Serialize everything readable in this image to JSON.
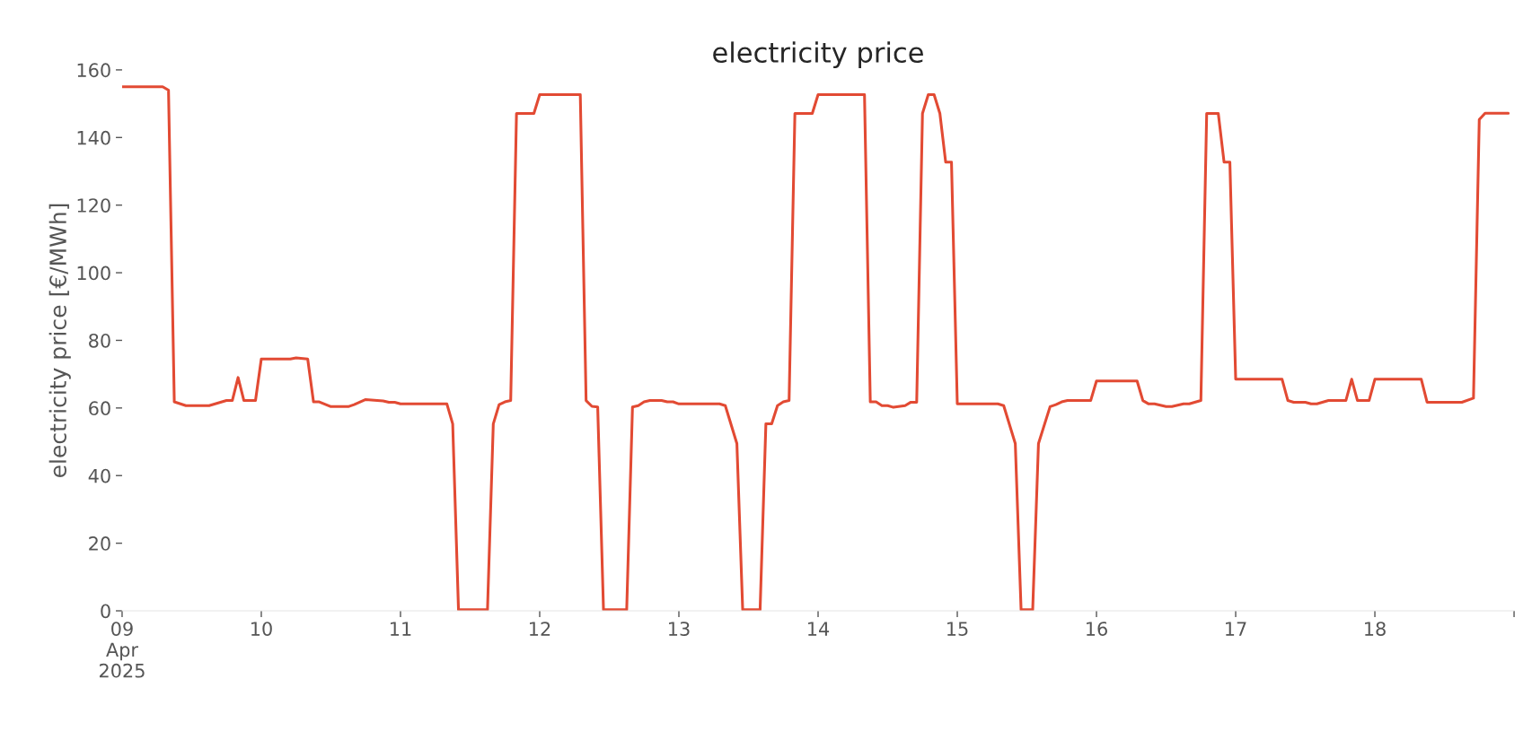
{
  "chart_data": {
    "type": "line",
    "title": "electricity price",
    "ylabel": "electricity price [€/MWh]",
    "x": [
      "2025-04-09T00:00",
      "2025-04-09T07:00",
      "2025-04-09T08:00",
      "2025-04-09T09:00",
      "2025-04-09T11:00",
      "2025-04-09T15:00",
      "2025-04-09T18:00",
      "2025-04-09T19:00",
      "2025-04-09T20:00",
      "2025-04-09T21:00",
      "2025-04-09T23:00",
      "2025-04-10T00:00",
      "2025-04-10T05:00",
      "2025-04-10T06:00",
      "2025-04-10T08:00",
      "2025-04-10T09:00",
      "2025-04-10T10:00",
      "2025-04-10T12:00",
      "2025-04-10T15:00",
      "2025-04-10T16:00",
      "2025-04-10T18:00",
      "2025-04-10T21:00",
      "2025-04-10T22:00",
      "2025-04-10T23:00",
      "2025-04-11T00:00",
      "2025-04-11T08:00",
      "2025-04-11T09:00",
      "2025-04-11T10:00",
      "2025-04-11T15:00",
      "2025-04-11T16:00",
      "2025-04-11T17:00",
      "2025-04-11T18:00",
      "2025-04-11T19:00",
      "2025-04-11T20:00",
      "2025-04-11T23:00",
      "2025-04-12T00:00",
      "2025-04-12T07:00",
      "2025-04-12T08:00",
      "2025-04-12T09:00",
      "2025-04-12T10:00",
      "2025-04-12T11:00",
      "2025-04-12T15:00",
      "2025-04-12T16:00",
      "2025-04-12T17:00",
      "2025-04-12T18:00",
      "2025-04-12T19:00",
      "2025-04-12T21:00",
      "2025-04-12T22:00",
      "2025-04-12T23:00",
      "2025-04-13T00:00",
      "2025-04-13T07:00",
      "2025-04-13T08:00",
      "2025-04-13T10:00",
      "2025-04-13T11:00",
      "2025-04-13T14:00",
      "2025-04-13T15:00",
      "2025-04-13T16:00",
      "2025-04-13T17:00",
      "2025-04-13T18:00",
      "2025-04-13T19:00",
      "2025-04-13T20:00",
      "2025-04-13T23:00",
      "2025-04-14T00:00",
      "2025-04-14T08:00",
      "2025-04-14T09:00",
      "2025-04-14T10:00",
      "2025-04-14T11:00",
      "2025-04-14T12:00",
      "2025-04-14T13:00",
      "2025-04-14T15:00",
      "2025-04-14T16:00",
      "2025-04-14T17:00",
      "2025-04-14T18:00",
      "2025-04-14T19:00",
      "2025-04-14T20:00",
      "2025-04-14T21:00",
      "2025-04-14T22:00",
      "2025-04-14T23:00",
      "2025-04-15T00:00",
      "2025-04-15T07:00",
      "2025-04-15T08:00",
      "2025-04-15T10:00",
      "2025-04-15T11:00",
      "2025-04-15T13:00",
      "2025-04-15T14:00",
      "2025-04-15T16:00",
      "2025-04-15T17:00",
      "2025-04-15T18:00",
      "2025-04-15T19:00",
      "2025-04-15T23:00",
      "2025-04-16T00:00",
      "2025-04-16T07:00",
      "2025-04-16T08:00",
      "2025-04-16T09:00",
      "2025-04-16T10:00",
      "2025-04-16T12:00",
      "2025-04-16T13:00",
      "2025-04-16T15:00",
      "2025-04-16T16:00",
      "2025-04-16T18:00",
      "2025-04-16T19:00",
      "2025-04-16T21:00",
      "2025-04-16T22:00",
      "2025-04-16T23:00",
      "2025-04-17T00:00",
      "2025-04-17T08:00",
      "2025-04-17T09:00",
      "2025-04-17T10:00",
      "2025-04-17T12:00",
      "2025-04-17T13:00",
      "2025-04-17T14:00",
      "2025-04-17T16:00",
      "2025-04-17T19:00",
      "2025-04-17T20:00",
      "2025-04-17T21:00",
      "2025-04-17T23:00",
      "2025-04-18T00:00",
      "2025-04-18T08:00",
      "2025-04-18T09:00",
      "2025-04-18T15:00",
      "2025-04-18T17:00",
      "2025-04-18T18:00",
      "2025-04-18T19:00",
      "2025-04-18T23:00"
    ],
    "series": [
      {
        "color": "#e24a33",
        "values": [
          155,
          155,
          154,
          61.8,
          60.7,
          60.7,
          62.2,
          62.2,
          69,
          62.2,
          62.2,
          74.5,
          74.5,
          74.8,
          74.5,
          61.8,
          61.8,
          60.4,
          60.4,
          61,
          62.5,
          62.1,
          61.7,
          61.7,
          61.2,
          61.2,
          55.3,
          0.3,
          0.3,
          55.3,
          61,
          61.8,
          62.2,
          147.1,
          147.1,
          152.7,
          152.7,
          62.2,
          60.5,
          60.3,
          0.3,
          0.3,
          60.3,
          60.7,
          61.8,
          62.2,
          62.2,
          61.8,
          61.8,
          61.2,
          61.2,
          60.7,
          49.5,
          0.3,
          0.3,
          55.3,
          55.3,
          60.7,
          61.8,
          62.2,
          147.1,
          147.1,
          152.7,
          152.7,
          61.8,
          61.8,
          60.7,
          60.7,
          60.2,
          60.7,
          61.7,
          61.7,
          147.1,
          152.7,
          152.7,
          147.1,
          132.7,
          132.7,
          61.2,
          61.2,
          60.7,
          49.5,
          0.3,
          0.3,
          49.5,
          60.4,
          61,
          61.8,
          62.2,
          62.2,
          68,
          68,
          62.2,
          61.2,
          61.2,
          60.4,
          60.4,
          61.2,
          61.2,
          62.2,
          147.1,
          147.1,
          132.7,
          132.7,
          68.5,
          68.5,
          62.2,
          61.7,
          61.7,
          61.2,
          61.2,
          62.2,
          62.2,
          68.5,
          62.2,
          62.2,
          68.5,
          68.5,
          61.7,
          61.7,
          62.9,
          145.3,
          147.2,
          147.2
        ]
      }
    ],
    "xlim": [
      "2025-04-09",
      "2025-04-19"
    ],
    "xticks": [
      {
        "value": "2025-04-09",
        "label": "09\nApr\n2025"
      },
      {
        "value": "2025-04-10",
        "label": "10"
      },
      {
        "value": "2025-04-11",
        "label": "11"
      },
      {
        "value": "2025-04-12",
        "label": "12"
      },
      {
        "value": "2025-04-13",
        "label": "13"
      },
      {
        "value": "2025-04-14",
        "label": "14"
      },
      {
        "value": "2025-04-15",
        "label": "15"
      },
      {
        "value": "2025-04-16",
        "label": "16"
      },
      {
        "value": "2025-04-17",
        "label": "17"
      },
      {
        "value": "2025-04-18",
        "label": "18"
      },
      {
        "value": "2025-04-19",
        "label": null
      }
    ],
    "ylim": [
      0,
      160
    ],
    "yticks": [
      0,
      20,
      40,
      60,
      80,
      100,
      120,
      140,
      160
    ],
    "grid": false,
    "legend": false,
    "line_style": "solid"
  }
}
